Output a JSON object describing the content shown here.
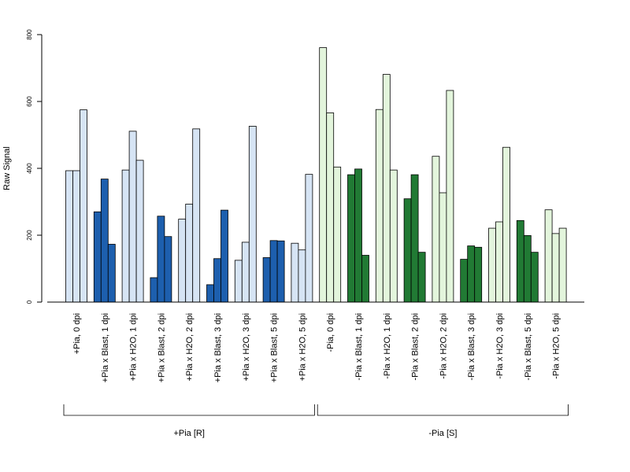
{
  "chart_data": {
    "type": "bar",
    "ylabel": "Raw Signal",
    "ylim": [
      0,
      800
    ],
    "yticks": [
      0,
      200,
      400,
      600,
      800
    ],
    "colors": {
      "pia_light": "#D6E4F4",
      "pia_dark": "#1D5FAE",
      "nopia_light": "#E3F5DC",
      "nopia_dark": "#217A34"
    },
    "categories": [
      "+Pia, 0 dpi",
      "+Pia x Blast, 1 dpi",
      "+Pia x H2O, 1 dpi",
      "+Pia x Blast, 2 dpi",
      "+Pia x H2O, 2 dpi",
      "+Pia x Blast, 3 dpi",
      "+Pia x H2O, 3 dpi",
      "+Pia x Blast, 5 dpi",
      "+Pia x H2O, 5 dpi",
      "-Pia, 0 dpi",
      "-Pia x Blast, 1 dpi",
      "-Pia x H2O, 1 dpi",
      "-Pia x Blast, 2 dpi",
      "-Pia x H2O, 2 dpi",
      "-Pia x Blast, 3 dpi",
      "-Pia x H2O, 3 dpi",
      "-Pia x Blast, 5 dpi",
      "-Pia x H2O, 5 dpi"
    ],
    "replicates": [
      [
        393,
        393,
        575
      ],
      [
        270,
        368,
        173
      ],
      [
        395,
        511,
        424
      ],
      [
        73,
        257,
        196
      ],
      [
        248,
        293,
        518
      ],
      [
        52,
        130,
        275
      ],
      [
        125,
        179,
        526
      ],
      [
        133,
        184,
        183
      ],
      [
        176,
        156,
        382
      ],
      [
        761,
        566,
        404
      ],
      [
        381,
        398,
        140
      ],
      [
        576,
        681,
        395
      ],
      [
        309,
        381,
        149
      ],
      [
        436,
        327,
        633
      ],
      [
        128,
        168,
        164
      ],
      [
        221,
        240,
        463
      ],
      [
        244,
        199,
        149
      ],
      [
        276,
        205,
        221
      ]
    ],
    "bar_colors": [
      "pia_light",
      "pia_dark",
      "pia_light",
      "pia_dark",
      "pia_light",
      "pia_dark",
      "pia_light",
      "pia_dark",
      "pia_light",
      "nopia_light",
      "nopia_dark",
      "nopia_light",
      "nopia_dark",
      "nopia_light",
      "nopia_dark",
      "nopia_light",
      "nopia_dark",
      "nopia_light"
    ],
    "groups": [
      {
        "label": "+Pia [R]",
        "first": 0,
        "last": 8
      },
      {
        "label": "-Pia [S]",
        "first": 9,
        "last": 17
      }
    ]
  }
}
